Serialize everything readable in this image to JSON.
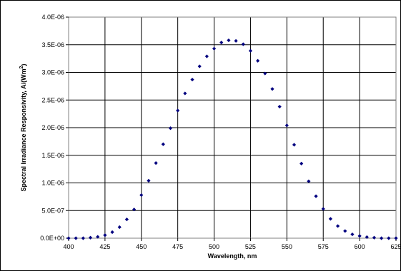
{
  "chart_data": {
    "type": "scatter",
    "title": "",
    "xlabel": "Wavelength, nm",
    "ylabel_main": "Spectral Irradiance Responsivity, A/(Wm",
    "ylabel_sup": "2",
    "ylabel_close": ")",
    "xlim": [
      400,
      625
    ],
    "ylim": [
      0,
      4e-06
    ],
    "x_ticks": [
      400,
      425,
      450,
      475,
      500,
      525,
      550,
      575,
      600,
      625
    ],
    "x_tick_labels": [
      "400",
      "425",
      "450",
      "475",
      "500",
      "525",
      "550",
      "575",
      "600",
      "625"
    ],
    "y_ticks": [
      0,
      5e-07,
      1e-06,
      1.5e-06,
      2e-06,
      2.5e-06,
      3e-06,
      3.5e-06,
      4e-06
    ],
    "y_tick_labels": [
      "0.0E+00",
      "5.0E-07",
      "1.0E-06",
      "1.5E-06",
      "2.0E-06",
      "2.5E-06",
      "3.0E-06",
      "3.5E-06",
      "4.0E-06"
    ],
    "grid": true,
    "legend": "none",
    "series": [
      {
        "color": "#00007f",
        "marker": "diamond",
        "x": [
          400,
          405,
          410,
          415,
          420,
          425,
          430,
          435,
          440,
          445,
          450,
          455,
          460,
          465,
          470,
          475,
          480,
          485,
          490,
          495,
          500,
          505,
          510,
          515,
          520,
          525,
          530,
          535,
          540,
          545,
          550,
          555,
          560,
          565,
          570,
          575,
          580,
          585,
          590,
          595,
          600,
          605,
          610,
          615,
          620,
          625
        ],
        "y": [
          0,
          0,
          0,
          1e-08,
          2.5e-08,
          5.5e-08,
          1.1e-07,
          2e-07,
          3.4e-07,
          5.2e-07,
          7.8e-07,
          1.04e-06,
          1.36e-06,
          1.7e-06,
          1.99e-06,
          2.31e-06,
          2.62e-06,
          2.87e-06,
          3.11e-06,
          3.29e-06,
          3.43e-06,
          3.54e-06,
          3.58e-06,
          3.57e-06,
          3.51e-06,
          3.39e-06,
          3.21e-06,
          2.98e-06,
          2.7e-06,
          2.38e-06,
          2.04e-06,
          1.69e-06,
          1.35e-06,
          1.03e-06,
          7.6e-07,
          5.3e-07,
          3.5e-07,
          2.2e-07,
          1.3e-07,
          7e-08,
          4e-08,
          2e-08,
          1e-08,
          0,
          0,
          0
        ]
      }
    ]
  }
}
